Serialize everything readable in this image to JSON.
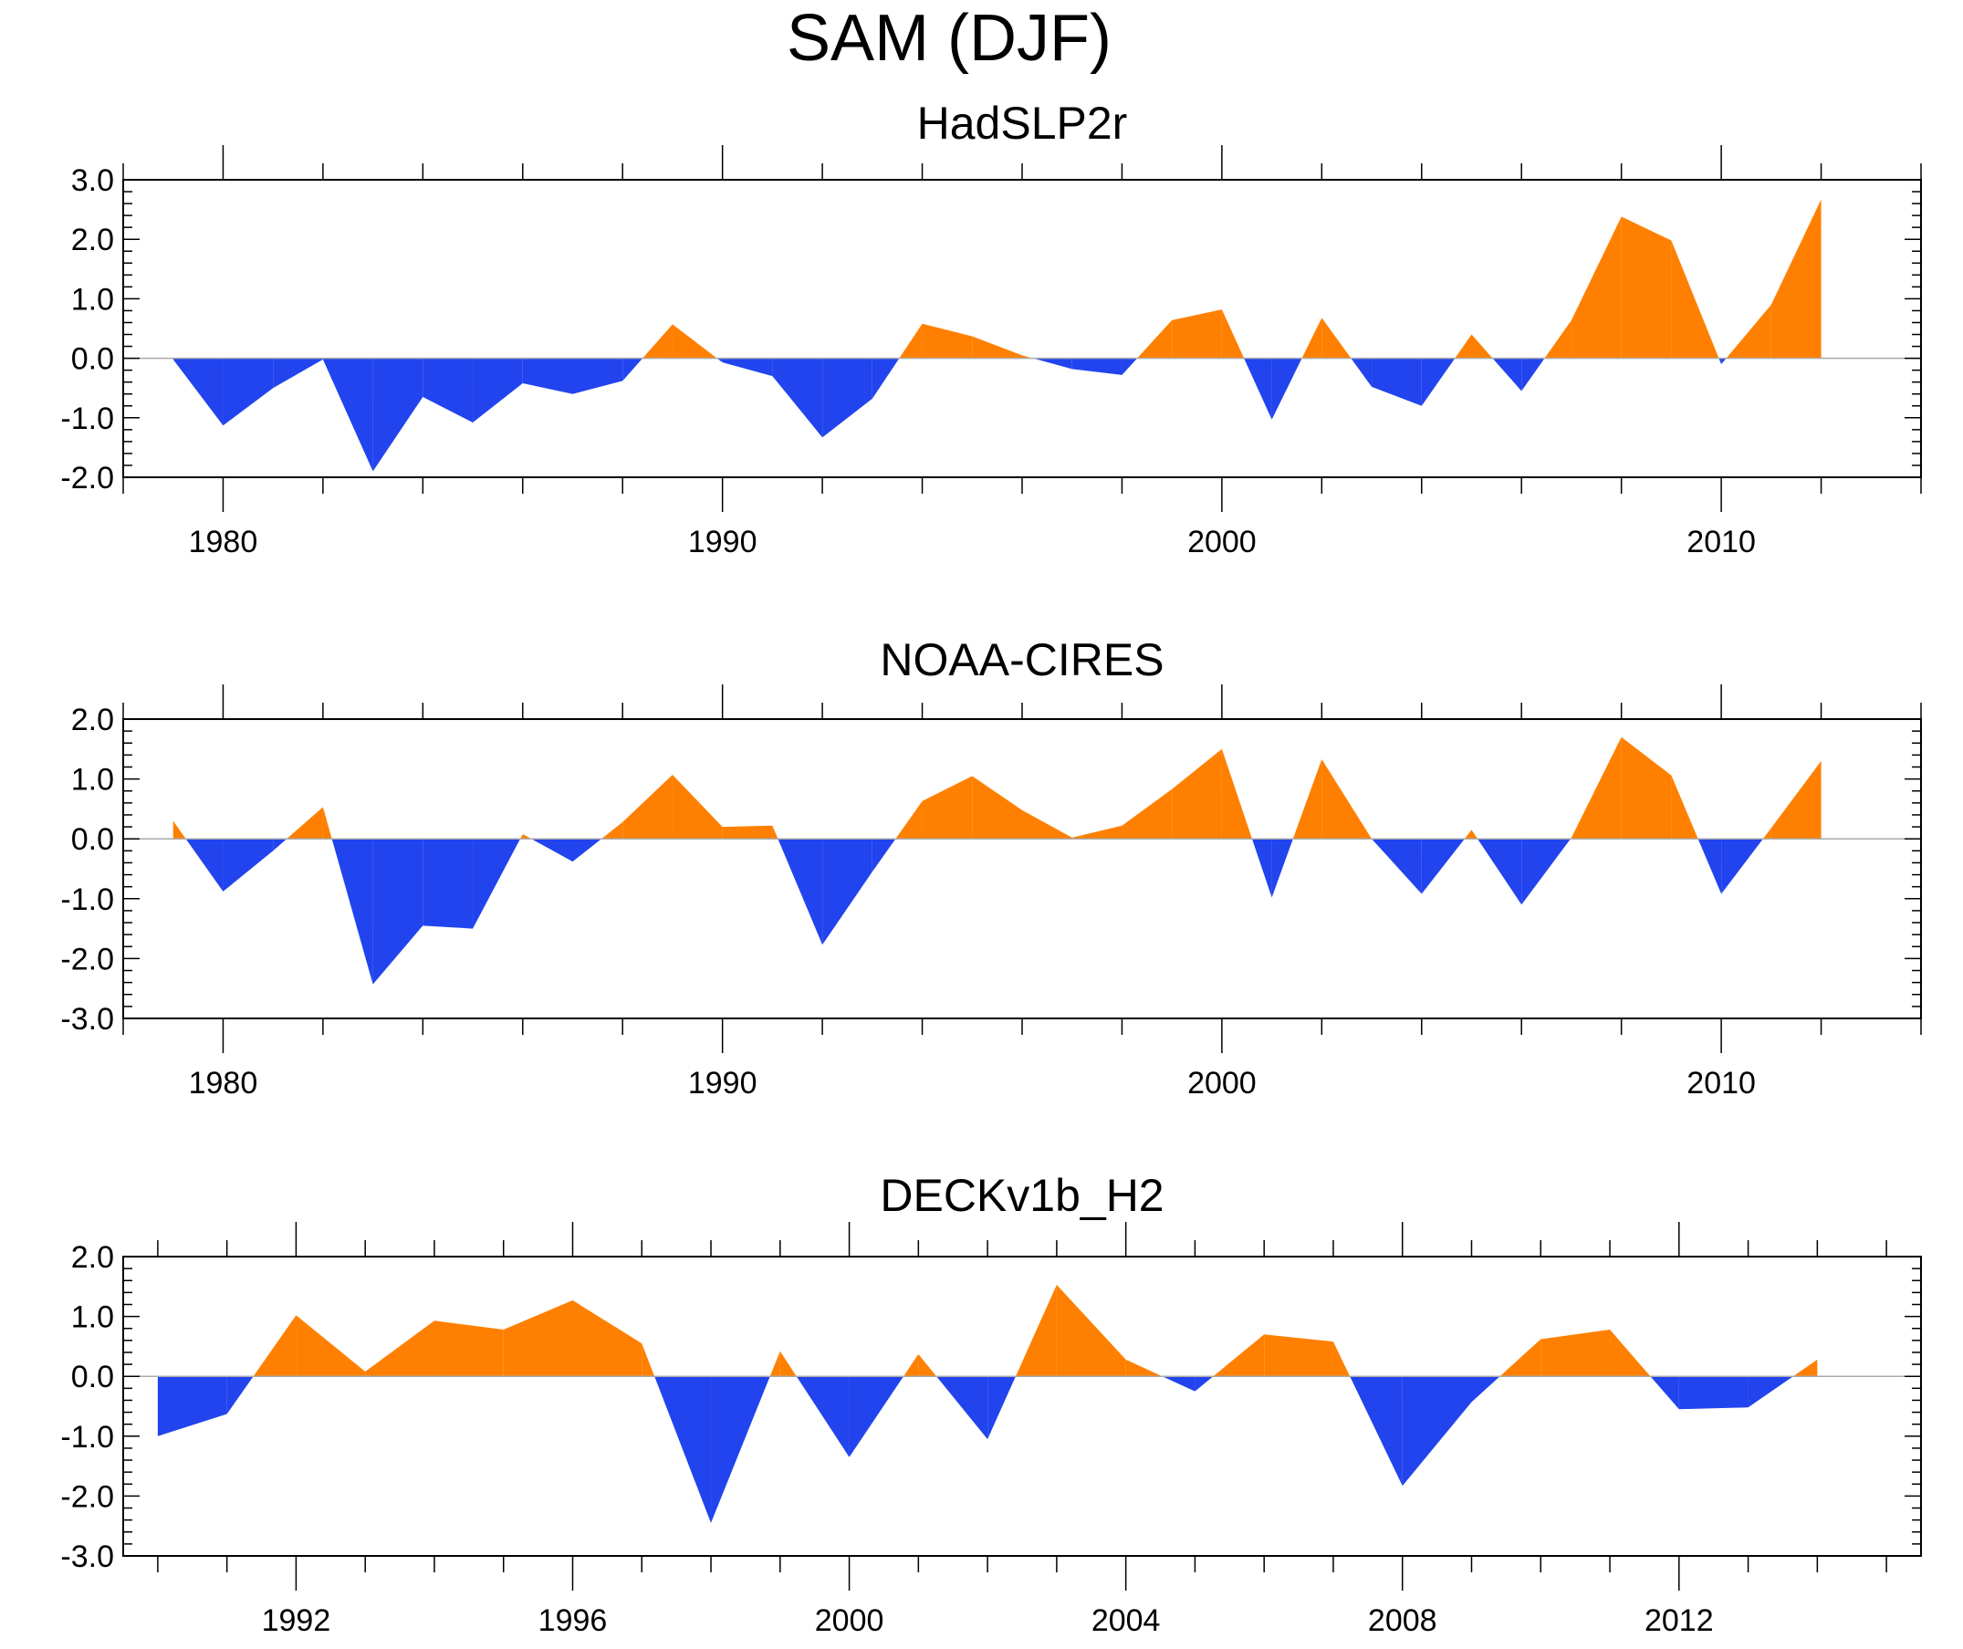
{
  "title": "SAM (DJF)",
  "colors": {
    "positive": "#FF8000",
    "negative": "#2244EE",
    "axis": "#000000",
    "zero": "#AAAAAA"
  },
  "chart_data": [
    {
      "type": "area",
      "title": "HadSLP2r",
      "xlim": [
        1978,
        2014
      ],
      "ylim": [
        -2.0,
        3.0
      ],
      "xticks": [
        1980,
        1990,
        2000,
        2010
      ],
      "xtick_labels": [
        "1980",
        "1990",
        "2000",
        "2010"
      ],
      "yticks": [
        -2.0,
        -1.0,
        0.0,
        1.0,
        2.0,
        3.0
      ],
      "ytick_labels": [
        "-2.0",
        "-1.0",
        "0.0",
        "1.0",
        "2.0",
        "3.0"
      ],
      "x": [
        1979,
        1980,
        1981,
        1982,
        1983,
        1984,
        1985,
        1986,
        1987,
        1988,
        1989,
        1990,
        1991,
        1992,
        1993,
        1994,
        1995,
        1996,
        1997,
        1998,
        1999,
        2000,
        2001,
        2002,
        2003,
        2004,
        2005,
        2006,
        2007,
        2008,
        2009,
        2010,
        2011,
        2012
      ],
      "values": [
        -0.02,
        -1.13,
        -0.5,
        -0.02,
        -1.9,
        -0.65,
        -1.08,
        -0.42,
        -0.6,
        -0.38,
        0.57,
        -0.07,
        -0.3,
        -1.33,
        -0.68,
        0.58,
        0.37,
        0.05,
        -0.18,
        -0.28,
        0.64,
        0.82,
        -1.03,
        0.68,
        -0.48,
        -0.8,
        0.4,
        -0.55,
        0.64,
        2.38,
        1.98,
        -0.1,
        0.9,
        2.67
      ]
    },
    {
      "type": "area",
      "title": "NOAA-CIRES",
      "xlim": [
        1978,
        2014
      ],
      "ylim": [
        -3.0,
        2.0
      ],
      "xticks": [
        1980,
        1990,
        2000,
        2010
      ],
      "xtick_labels": [
        "1980",
        "1990",
        "2000",
        "2010"
      ],
      "yticks": [
        -3.0,
        -2.0,
        -1.0,
        0.0,
        1.0,
        2.0
      ],
      "ytick_labels": [
        "-3.0",
        "-2.0",
        "-1.0",
        "0.0",
        "1.0",
        "2.0"
      ],
      "x": [
        1979,
        1980,
        1981,
        1982,
        1983,
        1984,
        1985,
        1986,
        1987,
        1988,
        1989,
        1990,
        1991,
        1992,
        1993,
        1994,
        1995,
        1996,
        1997,
        1998,
        1999,
        2000,
        2001,
        2002,
        2003,
        2004,
        2005,
        2006,
        2007,
        2008,
        2009,
        2010,
        2011,
        2012
      ],
      "values": [
        0.3,
        -0.88,
        -0.2,
        0.53,
        -2.43,
        -1.45,
        -1.5,
        0.08,
        -0.38,
        0.28,
        1.07,
        0.2,
        0.22,
        -1.77,
        -0.55,
        0.63,
        1.05,
        0.48,
        0.02,
        0.22,
        0.83,
        1.5,
        -0.98,
        1.33,
        0.0,
        -0.92,
        0.15,
        -1.1,
        0.02,
        1.7,
        1.06,
        -0.92,
        0.18,
        1.3
      ]
    },
    {
      "type": "area",
      "title": "DECKv1b_H2",
      "xlim": [
        1989.5,
        2015.5
      ],
      "ylim": [
        -3.0,
        2.0
      ],
      "xticks": [
        1992,
        1996,
        2000,
        2004,
        2008,
        2012
      ],
      "xtick_labels": [
        "1992",
        "1996",
        "2000",
        "2004",
        "2008",
        "2012"
      ],
      "yticks": [
        -3.0,
        -2.0,
        -1.0,
        0.0,
        1.0,
        2.0
      ],
      "ytick_labels": [
        "-3.0",
        "-2.0",
        "-1.0",
        "0.0",
        "1.0",
        "2.0"
      ],
      "x": [
        1990,
        1991,
        1992,
        1993,
        1994,
        1995,
        1996,
        1997,
        1998,
        1999,
        2000,
        2001,
        2002,
        2003,
        2004,
        2005,
        2006,
        2007,
        2008,
        2009,
        2010,
        2011,
        2012,
        2013,
        2014
      ],
      "values": [
        -1.0,
        -0.63,
        1.02,
        0.08,
        0.93,
        0.78,
        1.27,
        0.55,
        -2.45,
        0.42,
        -1.35,
        0.37,
        -1.05,
        1.53,
        0.28,
        -0.25,
        0.7,
        0.58,
        -1.83,
        -0.43,
        0.62,
        0.78,
        -0.55,
        -0.52,
        0.28
      ]
    }
  ]
}
